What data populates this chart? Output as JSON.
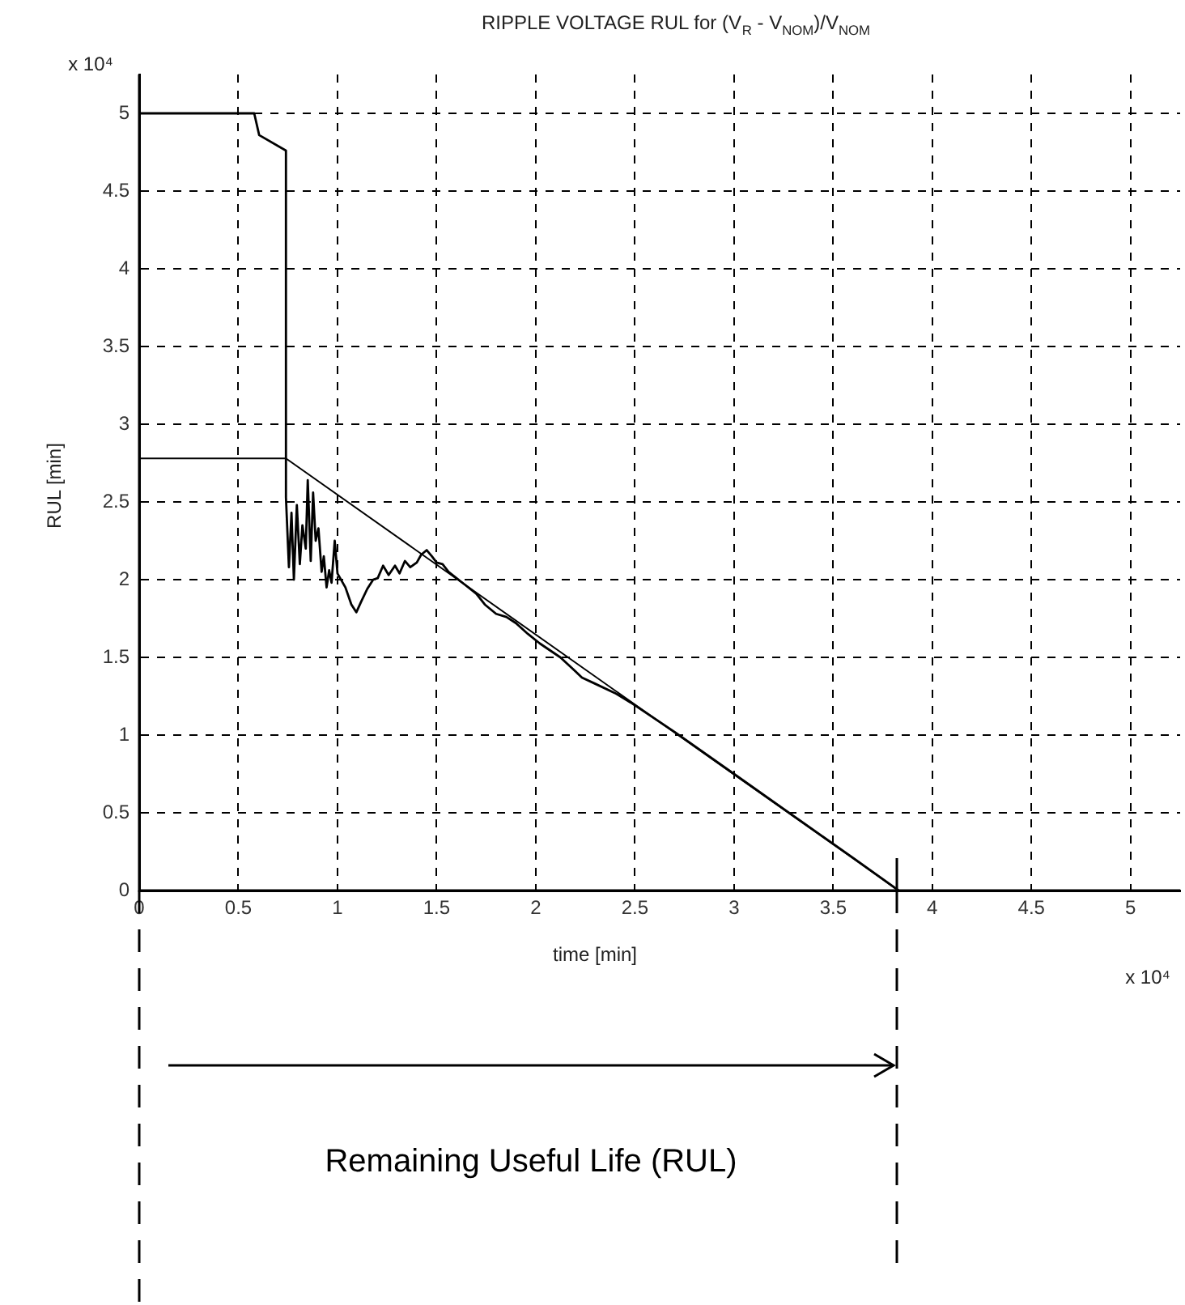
{
  "chart_data": {
    "type": "line",
    "title": "RIPPLE VOLTAGE RUL for (V$_{R}$ - V$_{NOM}$)/V$_{NOM}$",
    "xlabel": "time [min]",
    "ylabel": "RUL [min]",
    "xlim": [
      0,
      5.25
    ],
    "ylim": [
      0,
      5.25
    ],
    "xticks": [
      0,
      0.5,
      1,
      1.5,
      2,
      2.5,
      3,
      3.5,
      4,
      4.5,
      5
    ],
    "yticks": [
      0,
      0.5,
      1,
      1.5,
      2,
      2.5,
      3,
      3.5,
      4,
      4.5,
      5
    ],
    "grid": true,
    "line_style": "solid",
    "marker": "none",
    "series": [
      {
        "color": "#000000",
        "x": [
          0,
          0.74,
          3.83
        ],
        "values": [
          2.78,
          2.78,
          0
        ]
      },
      {
        "color": "#000000",
        "x": [
          0,
          0.58,
          0.605,
          0.74,
          0.74,
          0.755,
          0.768,
          0.78,
          0.795,
          0.81,
          0.823,
          0.84,
          0.85,
          0.865,
          0.877,
          0.89,
          0.904,
          0.92,
          0.931,
          0.945,
          0.958,
          0.97,
          0.986,
          1.0,
          1.04,
          1.07,
          1.095,
          1.12,
          1.15,
          1.18,
          1.203,
          1.23,
          1.258,
          1.29,
          1.313,
          1.34,
          1.367,
          1.4,
          1.422,
          1.45,
          1.476,
          1.5,
          1.53,
          1.56,
          1.6,
          1.64,
          1.7,
          1.743,
          1.8,
          1.852,
          1.9,
          1.961,
          2.02,
          2.124,
          2.2,
          2.233,
          2.3,
          2.4,
          2.478,
          2.7,
          3.0,
          3.3,
          3.6,
          3.83
        ],
        "values": [
          5,
          5,
          4.86,
          4.76,
          2.53,
          2.08,
          2.43,
          2.0,
          2.48,
          2.1,
          2.35,
          2.2,
          2.64,
          2.12,
          2.56,
          2.25,
          2.33,
          2.05,
          2.15,
          1.95,
          2.06,
          1.98,
          2.25,
          2.04,
          1.95,
          1.84,
          1.79,
          1.86,
          1.94,
          2.0,
          2.01,
          2.09,
          2.03,
          2.09,
          2.04,
          2.12,
          2.08,
          2.11,
          2.16,
          2.19,
          2.15,
          2.11,
          2.1,
          2.05,
          2.01,
          1.97,
          1.91,
          1.84,
          1.78,
          1.76,
          1.72,
          1.65,
          1.59,
          1.5,
          1.41,
          1.37,
          1.33,
          1.27,
          1.21,
          1.02,
          0.75,
          0.48,
          0.21,
          0
        ]
      }
    ],
    "annotations": [
      "x 10⁴",
      "x 10⁴",
      "Remaining Useful Life (RUL)"
    ]
  }
}
